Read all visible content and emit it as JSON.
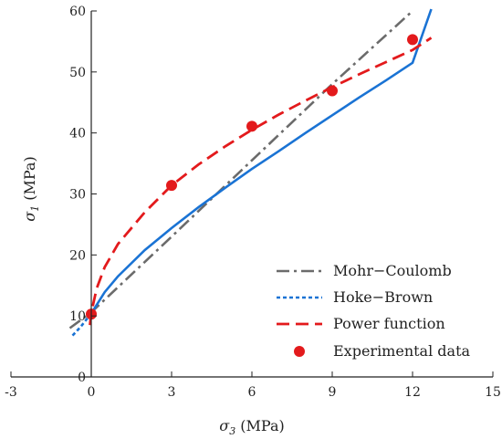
{
  "chart_data": {
    "type": "line",
    "xlabel": {
      "symbol": "σ",
      "subscript": "3",
      "unit": " (MPa)"
    },
    "ylabel": {
      "symbol": "σ",
      "subscript": "1",
      "unit": " (MPa)"
    },
    "xlim": [
      -3,
      15
    ],
    "ylim": [
      0,
      60
    ],
    "xticks": [
      -3,
      0,
      3,
      6,
      9,
      12,
      15
    ],
    "yticks": [
      0,
      10,
      20,
      30,
      40,
      50,
      60
    ],
    "grid": false,
    "legend_position": "bottom-right",
    "series": [
      {
        "name": "Mohr−Coulomb",
        "style": "dashdot",
        "color": "#6b6b6b",
        "x": [
          -0.8,
          0,
          3,
          6,
          9,
          12
        ],
        "y": [
          8.0,
          10.6,
          23.0,
          35.5,
          48.0,
          60.0
        ]
      },
      {
        "name": "Hoke−Brown",
        "style": "solid-with-dotted-extension",
        "color": "#1a73d4",
        "x": [
          -0.7,
          -0.4,
          -0.2,
          0,
          0.5,
          1,
          2,
          3,
          4,
          5,
          6,
          7,
          8,
          9,
          10,
          11,
          12,
          12.7
        ],
        "y": [
          6.8,
          8.2,
          9.3,
          10.4,
          13.9,
          16.5,
          20.8,
          24.4,
          27.8,
          31.0,
          34.1,
          37.0,
          40.0,
          42.9,
          45.8,
          48.6,
          51.5,
          60.3
        ]
      },
      {
        "name": "Power function",
        "style": "dashed",
        "color": "#e31a1c",
        "x": [
          -0.05,
          0,
          0.2,
          0.5,
          1,
          2,
          3,
          4,
          5,
          6,
          7,
          8,
          9,
          10,
          11,
          12,
          12.7
        ],
        "y": [
          8.5,
          10.5,
          14.5,
          18.0,
          21.8,
          27.0,
          31.4,
          34.8,
          37.8,
          40.5,
          43.0,
          45.3,
          47.5,
          49.6,
          51.6,
          53.6,
          55.6
        ]
      },
      {
        "name": "Experimental data",
        "style": "markers",
        "color": "#e31a1c",
        "x": [
          0,
          3,
          6,
          9,
          12
        ],
        "y": [
          10.3,
          31.4,
          41.1,
          46.9,
          55.3
        ]
      }
    ]
  }
}
